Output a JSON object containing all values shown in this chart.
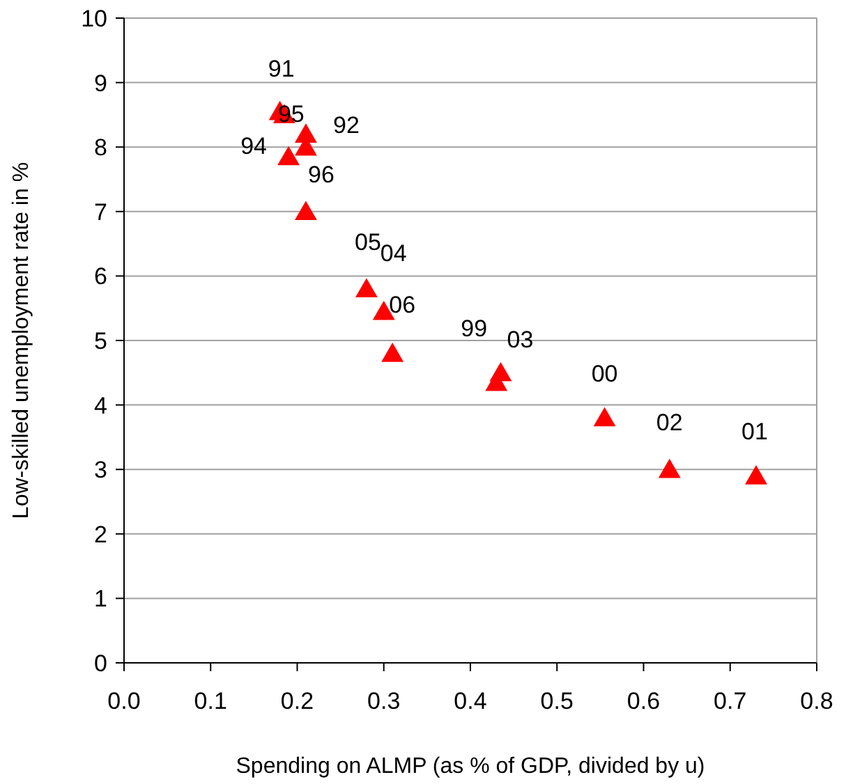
{
  "chart_data": {
    "type": "scatter",
    "xlabel": "Spending on ALMP (as % of GDP, divided by u)",
    "ylabel": "Low-skilled unemployment rate in %",
    "xlim": [
      0,
      0.8
    ],
    "xticks": [
      {
        "value": 0,
        "label": "0.0"
      },
      0.1,
      0.2,
      0.3,
      0.4,
      0.5,
      0.6,
      0.7,
      0.8
    ],
    "ylim": [
      0,
      10
    ],
    "yticks": [
      0,
      1,
      2,
      3,
      4,
      5,
      6,
      7,
      8,
      9,
      10
    ],
    "grid": "y",
    "marker": "triangle",
    "series": [
      {
        "color": "#ff0000",
        "x": [
          0.18,
          0.185,
          0.21,
          0.21,
          0.19,
          0.21,
          0.28,
          0.3,
          0.31,
          0.43,
          0.435,
          0.555,
          0.63,
          0.73
        ],
        "values": [
          8.55,
          8.5,
          8.2,
          8.0,
          7.85,
          7.0,
          5.8,
          5.45,
          4.8,
          4.35,
          4.5,
          3.8,
          3.0,
          2.9
        ]
      }
    ],
    "annotations": [
      {
        "text": "91",
        "x": 0.18,
        "y": 8.55
      },
      {
        "text": "95",
        "x": 0.185,
        "y": 8.5
      },
      {
        "text": "92",
        "x": 0.21,
        "y": 8.2
      },
      {
        "text": "94",
        "x": 0.19,
        "y": 7.85
      },
      {
        "text": "96",
        "x": 0.21,
        "y": 7.0
      },
      {
        "text": "05",
        "x": 0.28,
        "y": 5.8
      },
      {
        "text": "04",
        "x": 0.3,
        "y": 5.45
      },
      {
        "text": "06",
        "x": 0.31,
        "y": 4.8
      },
      {
        "text": "99",
        "x": 0.43,
        "y": 4.35
      },
      {
        "text": "03",
        "x": 0.435,
        "y": 4.5
      },
      {
        "text": "00",
        "x": 0.555,
        "y": 3.8
      },
      {
        "text": "02",
        "x": 0.63,
        "y": 3.0
      },
      {
        "text": "01",
        "x": 0.73,
        "y": 2.9
      }
    ]
  }
}
